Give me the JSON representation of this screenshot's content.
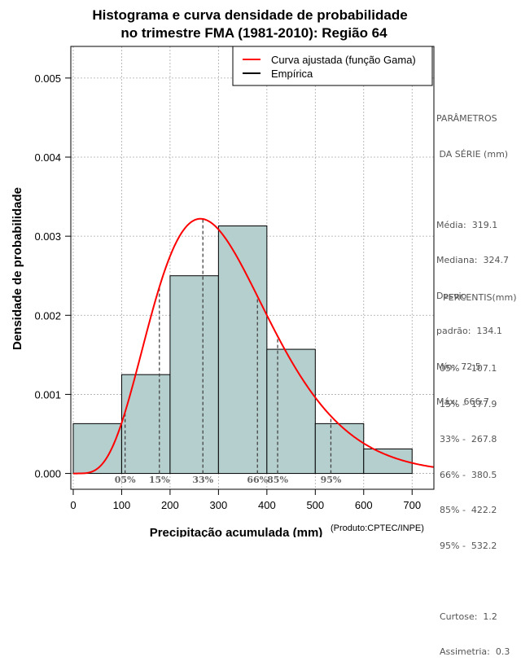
{
  "chart_data": {
    "type": "bar",
    "title_lines": [
      "Histograma e curva densidade de probabilidade",
      "no trimestre FMA (1981-2010): Região 64"
    ],
    "xlabel": "Precipitação acumulada (mm)",
    "ylabel": "Densidade de probabilidade",
    "credit": "(Produto:CPTEC/INPE)",
    "xlim": [
      -5,
      745
    ],
    "ylim": [
      -0.0002,
      0.0054
    ],
    "x_ticks": [
      0,
      100,
      200,
      300,
      400,
      500,
      600,
      700
    ],
    "x_tick_labels": [
      "0",
      "100",
      "200",
      "300",
      "400",
      "500",
      "600",
      "700"
    ],
    "y_ticks": [
      0,
      0.001,
      0.002,
      0.003,
      0.004,
      0.005
    ],
    "y_tick_labels": [
      "0.000",
      "0.001",
      "0.002",
      "0.003",
      "0.004",
      "0.005"
    ],
    "bins": [
      {
        "x0": 0,
        "x1": 100,
        "density": 0.00063
      },
      {
        "x0": 100,
        "x1": 200,
        "density": 0.00125
      },
      {
        "x0": 200,
        "x1": 300,
        "density": 0.0025
      },
      {
        "x0": 300,
        "x1": 400,
        "density": 0.00313
      },
      {
        "x0": 400,
        "x1": 500,
        "density": 0.00157
      },
      {
        "x0": 500,
        "x1": 600,
        "density": 0.00063
      },
      {
        "x0": 600,
        "x1": 700,
        "density": 0.00031
      }
    ],
    "gamma_fit": {
      "mean": 319.1,
      "sd": 134.1,
      "color": "#ff0000"
    },
    "percentile_markers": [
      {
        "label": "05%",
        "value": 107.1
      },
      {
        "label": "15%",
        "value": 177.9
      },
      {
        "label": "33%",
        "value": 267.8
      },
      {
        "label": "66%",
        "value": 380.5
      },
      {
        "label": "85%",
        "value": 422.2
      },
      {
        "label": "95%",
        "value": 532.2
      }
    ],
    "bar_fill": "#b5cece",
    "legend": [
      {
        "label": "Curva ajustada (função Gama)",
        "color": "#ff0000"
      },
      {
        "label": "Empírica",
        "color": "#000000"
      }
    ]
  },
  "params": {
    "title_1": "PARÂMETROS",
    "title_2": " DA SÉRIE (mm)",
    "media": "Média:  319.1",
    "mediana": "Mediana:  324.7",
    "desvio_1": "Desvio",
    "desvio_2": "padrão:  134.1",
    "min": "Mín:  72.5",
    "max": "Máx:  666.7"
  },
  "percentis": {
    "title": "PERCENTIS(mm)",
    "items": [
      "05% -  107.1",
      "15% -  177.9",
      "33% -  267.8",
      "66% -  380.5",
      "85% -  422.2",
      "95% -  532.2"
    ],
    "curtose": "Curtose:  1.2",
    "assimetria": "Assimetria:  0.3"
  }
}
